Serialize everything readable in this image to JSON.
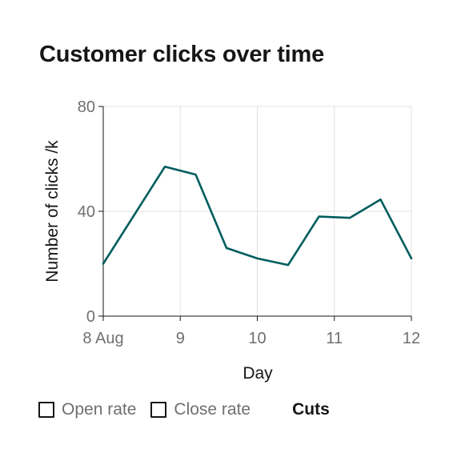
{
  "chart_data": {
    "type": "line",
    "title": "Customer clicks over time",
    "xlabel": "Day",
    "ylabel": "Number of clicks /k",
    "x_ticks": [
      "8 Aug",
      "9",
      "10",
      "11",
      "12"
    ],
    "xlim": [
      8,
      12
    ],
    "ylim": [
      0,
      80
    ],
    "y_ticks": [
      0,
      40,
      80
    ],
    "grid": true,
    "series": [
      {
        "color": "#005d5d",
        "x": [
          8.0,
          8.8,
          9.2,
          9.6,
          10.0,
          10.4,
          10.8,
          11.2,
          11.6,
          12.0
        ],
        "y": [
          20,
          57,
          54,
          26,
          22,
          19.5,
          38,
          37.5,
          44.5,
          22
        ]
      }
    ]
  },
  "legend": {
    "items": [
      {
        "label": "Open rate",
        "checked": false
      },
      {
        "label": "Close rate",
        "checked": false
      }
    ],
    "cuts_label": "Cuts"
  }
}
